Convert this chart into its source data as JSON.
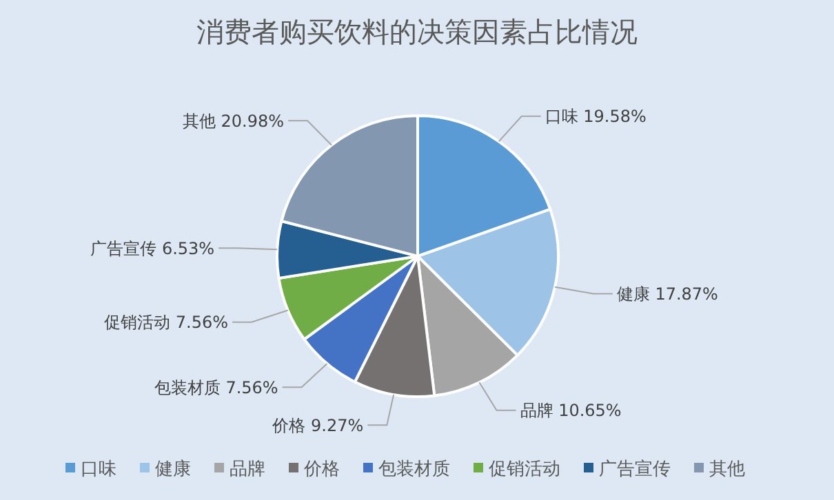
{
  "chart_data": {
    "type": "pie",
    "title": "消费者购买饮料的决策因素占比情况",
    "categories": [
      "口味",
      "健康",
      "品牌",
      "价格",
      "包装材质",
      "促销活动",
      "广告宣传",
      "其他"
    ],
    "values": [
      19.58,
      17.87,
      10.65,
      9.27,
      7.56,
      7.56,
      6.53,
      20.98
    ],
    "value_labels": [
      "19.58%",
      "17.87%",
      "10.65%",
      "9.27%",
      "7.56%",
      "7.56%",
      "6.53%",
      "20.98%"
    ],
    "colors": [
      "#5b9bd5",
      "#9dc3e6",
      "#a5a5a5",
      "#767171",
      "#4472c4",
      "#70ad47",
      "#255e91",
      "#8497b0"
    ],
    "legend": "bottom"
  }
}
